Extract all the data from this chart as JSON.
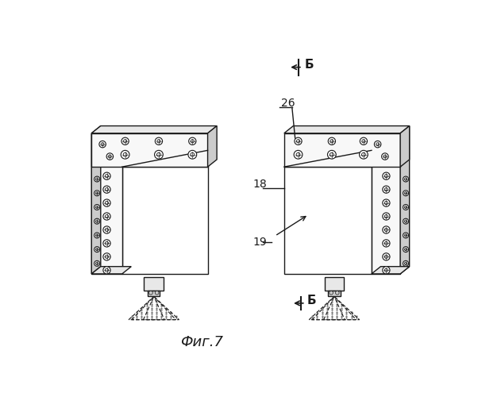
{
  "title": "Фиг.7",
  "bg_color": "#ffffff",
  "line_color": "#1a1a1a",
  "lw": 1.0,
  "label_26": "26",
  "label_18": "18",
  "label_19": "19",
  "label_B": "Б",
  "fill_light": "#f8f8f8",
  "fill_mid": "#e8e8e8",
  "fill_dark": "#cccccc"
}
